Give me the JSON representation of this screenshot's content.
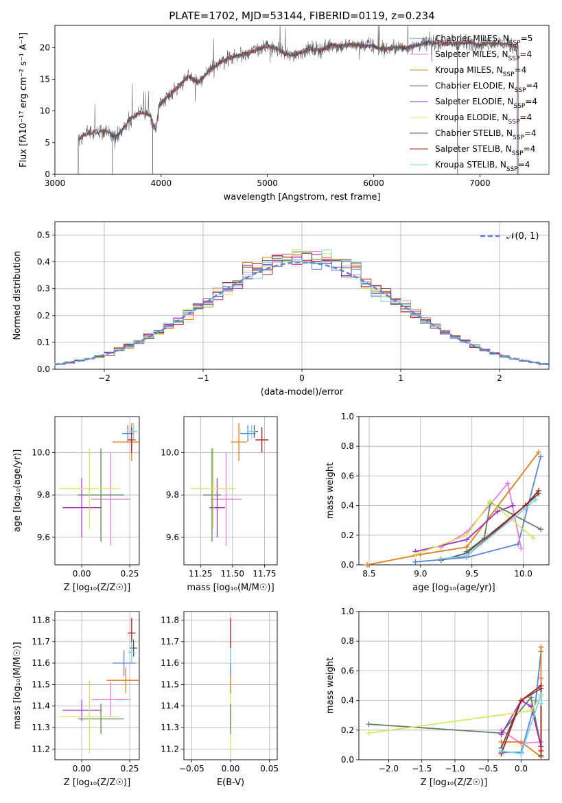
{
  "figure_title": "PLATE=1702, MJD=53144, FIBERID=0119, z=0.234",
  "colors": {
    "Chabrier MILES": "#5b86d6",
    "Salpeter MILES": "#e77be0",
    "Kroupa MILES": "#e07b1a",
    "Chabrier ELODIE": "#5f7f5f",
    "Salpeter ELODIE": "#a030c0",
    "Kroupa ELODIE": "#d4e860",
    "Chabrier STELIB": "#555555",
    "Salpeter STELIB": "#b01818",
    "Kroupa STELIB": "#7fd4e6",
    "normal_curve": "#5b86d6",
    "grid": "#b0b0b0"
  },
  "chart_data": [
    {
      "id": "spectrum",
      "type": "line",
      "xlabel": "wavelength [Angstrom, rest frame]",
      "ylabel": "Flux [fλ10⁻¹⁷ erg cm⁻² s⁻¹ A⁻¹]",
      "xlim": [
        3000,
        7650
      ],
      "ylim": [
        0,
        23.5
      ],
      "xticks": [
        3000,
        4000,
        5000,
        6000,
        7000
      ],
      "yticks": [
        0,
        5,
        10,
        15,
        20
      ],
      "grid": false,
      "legend_position": "right",
      "legend": [
        {
          "label": "Chabrier MILES, N",
          "sub": "SSP",
          "tail": "=5",
          "color_key": "Chabrier MILES"
        },
        {
          "label": "Salpeter MILES, N",
          "sub": "SSP",
          "tail": "=4",
          "color_key": "Salpeter MILES"
        },
        {
          "label": "Kroupa MILES, N",
          "sub": "SSP",
          "tail": "=4",
          "color_key": "Kroupa MILES"
        },
        {
          "label": "Chabrier ELODIE, N",
          "sub": "SSP",
          "tail": "=4",
          "color_key": "Chabrier ELODIE"
        },
        {
          "label": "Salpeter ELODIE, N",
          "sub": "SSP",
          "tail": "=4",
          "color_key": "Salpeter ELODIE"
        },
        {
          "label": "Kroupa ELODIE, N",
          "sub": "SSP",
          "tail": "=4",
          "color_key": "Kroupa ELODIE"
        },
        {
          "label": "Chabrier STELIB, N",
          "sub": "SSP",
          "tail": "=4",
          "color_key": "Chabrier STELIB"
        },
        {
          "label": "Salpeter STELIB, N",
          "sub": "SSP",
          "tail": "=4",
          "color_key": "Salpeter STELIB"
        },
        {
          "label": "Kroupa STELIB, N",
          "sub": "SSP",
          "tail": "=4",
          "color_key": "Kroupa STELIB"
        }
      ],
      "continuum": [
        [
          3220,
          5.5
        ],
        [
          3300,
          6.4
        ],
        [
          3400,
          6.8
        ],
        [
          3500,
          6.8
        ],
        [
          3560,
          6.0
        ],
        [
          3620,
          6.6
        ],
        [
          3700,
          8.6
        ],
        [
          3800,
          9.8
        ],
        [
          3900,
          9.2
        ],
        [
          3950,
          6.8
        ],
        [
          3980,
          10.8
        ],
        [
          4050,
          12.2
        ],
        [
          4150,
          13.6
        ],
        [
          4250,
          15.4
        ],
        [
          4350,
          14.5
        ],
        [
          4450,
          16.3
        ],
        [
          4550,
          17.6
        ],
        [
          4650,
          18.4
        ],
        [
          4750,
          18.8
        ],
        [
          4850,
          19.4
        ],
        [
          5000,
          20.2
        ],
        [
          5100,
          19.8
        ],
        [
          5200,
          18.7
        ],
        [
          5300,
          19.2
        ],
        [
          5400,
          19.8
        ],
        [
          5500,
          19.6
        ],
        [
          5600,
          20.4
        ],
        [
          5700,
          20.2
        ],
        [
          5800,
          20.5
        ],
        [
          5900,
          20.3
        ],
        [
          6000,
          20.2
        ],
        [
          6100,
          19.7
        ],
        [
          6200,
          20.0
        ],
        [
          6300,
          19.9
        ],
        [
          6400,
          20.4
        ],
        [
          6500,
          20.7
        ],
        [
          6600,
          20.8
        ],
        [
          6700,
          20.6
        ],
        [
          6800,
          20.7
        ],
        [
          6900,
          20.8
        ],
        [
          7000,
          20.5
        ],
        [
          7100,
          20.8
        ],
        [
          7200,
          20.6
        ],
        [
          7300,
          20.3
        ],
        [
          7350,
          20.1
        ]
      ],
      "spectrum_ranges": {
        "Chabrier MILES": [
          3540,
          7350
        ],
        "Salpeter MILES": [
          3540,
          7350
        ],
        "Kroupa MILES": [
          3540,
          7350
        ],
        "Chabrier ELODIE": [
          3920,
          6790
        ],
        "Salpeter ELODIE": [
          3920,
          6790
        ],
        "Kroupa ELODIE": [
          3920,
          6790
        ],
        "Chabrier STELIB": [
          3220,
          7360
        ],
        "Salpeter STELIB": [
          3220,
          7360
        ],
        "Kroupa STELIB": [
          3220,
          7360
        ]
      }
    },
    {
      "id": "residuals",
      "type": "line",
      "xlabel": "(data-model)/error",
      "ylabel": "Normed distribution",
      "xlim": [
        -2.5,
        2.5
      ],
      "ylim": [
        0,
        0.55
      ],
      "xticks": [
        -2,
        -1,
        0,
        1,
        2
      ],
      "yticks": [
        0.0,
        0.1,
        0.2,
        0.3,
        0.4,
        0.5
      ],
      "grid": true,
      "legend_position": "top-right",
      "legend": [
        {
          "label": "𝒩(0, 1)",
          "color_key": "normal_curve"
        }
      ],
      "bin_width": 0.1,
      "series_keys": [
        "Chabrier MILES",
        "Salpeter MILES",
        "Kroupa MILES",
        "Chabrier ELODIE",
        "Salpeter ELODIE",
        "Kroupa ELODIE",
        "Chabrier STELIB",
        "Salpeter STELIB",
        "Kroupa STELIB"
      ]
    },
    {
      "id": "age_vs_Z",
      "type": "scatter",
      "xlabel": "Z [log₁₀(Z/Z☉)]",
      "ylabel": "age  [log₁₀(age/yr)]",
      "xlim": [
        -0.14,
        0.3
      ],
      "ylim": [
        9.47,
        10.17
      ],
      "xticks": [
        0.0,
        0.25
      ],
      "xticklabels": [
        "0.00",
        "0.25"
      ],
      "yticks": [
        9.6,
        9.8,
        10.0
      ],
      "grid": true,
      "points": [
        {
          "s": "Chabrier MILES",
          "x": 0.24,
          "y": 10.09,
          "xerr": 0.03,
          "yerr": 0.04
        },
        {
          "s": "Salpeter MILES",
          "x": 0.15,
          "y": 9.78,
          "xerr": 0.1,
          "yerr": 0.22
        },
        {
          "s": "Kroupa MILES",
          "x": 0.26,
          "y": 10.05,
          "xerr": 0.1,
          "yerr": 0.09
        },
        {
          "s": "Chabrier ELODIE",
          "x": 0.1,
          "y": 9.8,
          "xerr": 0.12,
          "yerr": 0.22
        },
        {
          "s": "Salpeter ELODIE",
          "x": 0.0,
          "y": 9.74,
          "xerr": 0.1,
          "yerr": 0.14
        },
        {
          "s": "Kroupa ELODIE",
          "x": 0.04,
          "y": 9.83,
          "xerr": 0.16,
          "yerr": 0.19
        },
        {
          "s": "Chabrier STELIB",
          "x": 0.27,
          "y": 10.1,
          "xerr": 0.02,
          "yerr": 0.02
        },
        {
          "s": "Salpeter STELIB",
          "x": 0.26,
          "y": 10.06,
          "xerr": 0.02,
          "yerr": 0.06
        },
        {
          "s": "Kroupa STELIB",
          "x": 0.27,
          "y": 10.1,
          "xerr": 0.02,
          "yerr": 0.04
        }
      ]
    },
    {
      "id": "age_vs_mass",
      "type": "scatter",
      "xlabel": "mass [log₁₀(M/M☉)]",
      "ylabel": "",
      "xlim": [
        11.12,
        11.85
      ],
      "ylim": [
        9.47,
        10.17
      ],
      "xticks": [
        11.25,
        11.5,
        11.75
      ],
      "xticklabels": [
        "11.25",
        "11.50",
        "11.75"
      ],
      "yticks": [
        9.6,
        9.8,
        10.0
      ],
      "grid": true,
      "points": [
        {
          "s": "Chabrier MILES",
          "x": 11.62,
          "y": 10.09,
          "xerr": 0.06,
          "yerr": 0.04
        },
        {
          "s": "Salpeter MILES",
          "x": 11.45,
          "y": 9.78,
          "xerr": 0.12,
          "yerr": 0.22
        },
        {
          "s": "Kroupa MILES",
          "x": 11.55,
          "y": 10.05,
          "xerr": 0.06,
          "yerr": 0.09
        },
        {
          "s": "Chabrier ELODIE",
          "x": 11.34,
          "y": 9.8,
          "xerr": 0.07,
          "yerr": 0.22
        },
        {
          "s": "Salpeter ELODIE",
          "x": 11.38,
          "y": 9.74,
          "xerr": 0.06,
          "yerr": 0.14
        },
        {
          "s": "Kroupa ELODIE",
          "x": 11.35,
          "y": 9.83,
          "xerr": 0.18,
          "yerr": 0.19
        },
        {
          "s": "Chabrier STELIB",
          "x": 11.67,
          "y": 10.1,
          "xerr": 0.03,
          "yerr": 0.03
        },
        {
          "s": "Salpeter STELIB",
          "x": 11.73,
          "y": 10.06,
          "xerr": 0.05,
          "yerr": 0.06
        },
        {
          "s": "Kroupa STELIB",
          "x": 11.65,
          "y": 10.1,
          "xerr": 0.03,
          "yerr": 0.03
        }
      ]
    },
    {
      "id": "weight_vs_age",
      "type": "line",
      "xlabel": "age  [log₁₀(age/yr)]",
      "ylabel": "mass weight",
      "xlim": [
        8.4,
        10.25
      ],
      "ylim": [
        0,
        1.0
      ],
      "xticks": [
        8.5,
        9.0,
        9.5,
        10.0
      ],
      "xticklabels": [
        "8.5",
        "9.0",
        "9.5",
        "10.0"
      ],
      "yticks": [
        0.0,
        0.2,
        0.4,
        0.6,
        0.8,
        1.0
      ],
      "grid": true,
      "series": [
        {
          "s": "Chabrier MILES",
          "x": [
            8.95,
            9.45,
            9.95,
            10.17
          ],
          "y": [
            0.02,
            0.05,
            0.14,
            0.73
          ]
        },
        {
          "s": "Salpeter MILES",
          "x": [
            9.2,
            9.45,
            9.85,
            9.98
          ],
          "y": [
            0.12,
            0.22,
            0.55,
            0.11
          ]
        },
        {
          "s": "Kroupa MILES",
          "x": [
            8.48,
            9.0,
            9.45,
            10.15
          ],
          "y": [
            0.0,
            0.07,
            0.12,
            0.76
          ]
        },
        {
          "s": "Chabrier ELODIE",
          "x": [
            9.45,
            9.62,
            9.68,
            10.17
          ],
          "y": [
            0.09,
            0.18,
            0.42,
            0.24
          ]
        },
        {
          "s": "Salpeter ELODIE",
          "x": [
            8.95,
            9.45,
            9.75,
            9.9
          ],
          "y": [
            0.09,
            0.17,
            0.36,
            0.4
          ]
        },
        {
          "s": "Kroupa ELODIE",
          "x": [
            8.95,
            9.45,
            9.68,
            10.1
          ],
          "y": [
            0.07,
            0.2,
            0.43,
            0.18
          ]
        },
        {
          "s": "Chabrier STELIB",
          "x": [
            9.2,
            9.45,
            10.02,
            10.15
          ],
          "y": [
            0.03,
            0.08,
            0.4,
            0.48
          ]
        },
        {
          "s": "Salpeter STELIB",
          "x": [
            9.2,
            9.45,
            10.02,
            10.15
          ],
          "y": [
            0.04,
            0.06,
            0.4,
            0.5
          ]
        },
        {
          "s": "Kroupa STELIB",
          "x": [
            9.2,
            9.45,
            10.02,
            10.12
          ],
          "y": [
            0.04,
            0.06,
            0.38,
            0.44
          ]
        }
      ]
    },
    {
      "id": "mass_vs_Z",
      "type": "scatter",
      "xlabel": "Z [log₁₀(Z/Z☉)]",
      "ylabel": "mass [log₁₀(M/M☉)]",
      "xlim": [
        -0.14,
        0.3
      ],
      "ylim": [
        11.15,
        11.84
      ],
      "xticks": [
        0.0,
        0.25
      ],
      "xticklabels": [
        "0.00",
        "0.25"
      ],
      "yticks": [
        11.2,
        11.3,
        11.4,
        11.5,
        11.6,
        11.7,
        11.8
      ],
      "grid": true,
      "points": [
        {
          "s": "Chabrier MILES",
          "x": 0.22,
          "y": 11.6,
          "xerr": 0.06,
          "yerr": 0.06
        },
        {
          "s": "Salpeter MILES",
          "x": 0.15,
          "y": 11.43,
          "xerr": 0.1,
          "yerr": 0.08
        },
        {
          "s": "Kroupa MILES",
          "x": 0.23,
          "y": 11.52,
          "xerr": 0.1,
          "yerr": 0.06
        },
        {
          "s": "Chabrier ELODIE",
          "x": 0.1,
          "y": 11.34,
          "xerr": 0.12,
          "yerr": 0.07
        },
        {
          "s": "Salpeter ELODIE",
          "x": 0.0,
          "y": 11.38,
          "xerr": 0.1,
          "yerr": 0.05
        },
        {
          "s": "Kroupa ELODIE",
          "x": 0.04,
          "y": 11.35,
          "xerr": 0.16,
          "yerr": 0.17
        },
        {
          "s": "Chabrier STELIB",
          "x": 0.27,
          "y": 11.67,
          "xerr": 0.02,
          "yerr": 0.04
        },
        {
          "s": "Salpeter STELIB",
          "x": 0.26,
          "y": 11.74,
          "xerr": 0.02,
          "yerr": 0.07
        },
        {
          "s": "Kroupa STELIB",
          "x": 0.26,
          "y": 11.65,
          "xerr": 0.02,
          "yerr": 0.05
        }
      ]
    },
    {
      "id": "mass_vs_ebv",
      "type": "scatter",
      "xlabel": "E(B-V)",
      "ylabel": "",
      "xlim": [
        -0.06,
        0.06
      ],
      "ylim": [
        11.15,
        11.84
      ],
      "xticks": [
        -0.05,
        0.0,
        0.05
      ],
      "xticklabels": [
        "−0.05",
        "0.00",
        "0.05"
      ],
      "yticks": [
        11.2,
        11.3,
        11.4,
        11.5,
        11.6,
        11.7,
        11.8
      ],
      "grid": true,
      "points": [
        {
          "s": "Kroupa ELODIE",
          "x": 0.0,
          "y": 11.35,
          "xerr": 0.0005,
          "yerr": 0.17
        },
        {
          "s": "Chabrier ELODIE",
          "x": 0.0,
          "y": 11.34,
          "xerr": 0.0005,
          "yerr": 0.07
        },
        {
          "s": "Kroupa MILES",
          "x": 0.0,
          "y": 11.52,
          "xerr": 0.0005,
          "yerr": 0.06
        },
        {
          "s": "Chabrier MILES",
          "x": 0.0,
          "y": 11.6,
          "xerr": 0.0005,
          "yerr": 0.06
        },
        {
          "s": "Kroupa STELIB",
          "x": 0.0,
          "y": 11.65,
          "xerr": 0.0005,
          "yerr": 0.05
        },
        {
          "s": "Salpeter STELIB",
          "x": 0.0,
          "y": 11.74,
          "xerr": 0.0005,
          "yerr": 0.07
        }
      ]
    },
    {
      "id": "weight_vs_Z",
      "type": "line",
      "xlabel": "Z [log₁₀(Z/Z☉)]",
      "ylabel": "mass weight",
      "xlim": [
        -2.45,
        0.42
      ],
      "ylim": [
        0,
        1.0
      ],
      "xticks": [
        -2.0,
        -1.5,
        -1.0,
        -0.5,
        0.0
      ],
      "xticklabels": [
        "−2.0",
        "−1.5",
        "−1.0",
        "−0.5",
        "0.0"
      ],
      "yticks": [
        0.0,
        0.2,
        0.4,
        0.6,
        0.8,
        1.0
      ],
      "grid": true,
      "series": [
        {
          "s": "Chabrier MILES",
          "x": [
            -0.3,
            0.0,
            0.22,
            0.3
          ],
          "y": [
            0.05,
            0.05,
            0.4,
            0.73
          ]
        },
        {
          "s": "Salpeter MILES",
          "x": [
            -0.3,
            0.0,
            0.3,
            0.3
          ],
          "y": [
            0.2,
            0.11,
            0.12,
            0.55
          ]
        },
        {
          "s": "Kroupa MILES",
          "x": [
            -0.3,
            0.0,
            0.3,
            0.3
          ],
          "y": [
            0.12,
            0.12,
            0.02,
            0.76
          ]
        },
        {
          "s": "Chabrier ELODIE",
          "x": [
            -2.3,
            -0.3,
            0.15,
            0.3
          ],
          "y": [
            0.24,
            0.18,
            0.42,
            0.09
          ]
        },
        {
          "s": "Salpeter ELODIE",
          "x": [
            -0.3,
            0.0,
            0.15,
            0.3
          ],
          "y": [
            0.17,
            0.4,
            0.36,
            0.09
          ]
        },
        {
          "s": "Kroupa ELODIE",
          "x": [
            -2.3,
            0.15,
            0.3,
            0.3
          ],
          "y": [
            0.18,
            0.33,
            0.43,
            0.07
          ]
        },
        {
          "s": "Chabrier STELIB",
          "x": [
            -0.3,
            0.0,
            0.3,
            0.3
          ],
          "y": [
            0.08,
            0.4,
            0.48,
            0.03
          ]
        },
        {
          "s": "Salpeter STELIB",
          "x": [
            -0.3,
            0.0,
            0.3,
            0.3
          ],
          "y": [
            0.04,
            0.4,
            0.5,
            0.06
          ]
        },
        {
          "s": "Kroupa STELIB",
          "x": [
            -0.3,
            0.0,
            0.3,
            0.3
          ],
          "y": [
            0.06,
            0.04,
            0.44,
            0.38
          ]
        }
      ]
    }
  ]
}
